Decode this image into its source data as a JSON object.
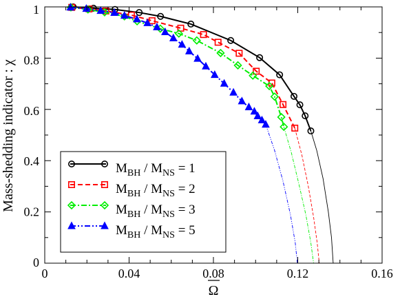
{
  "chart_data": {
    "type": "line",
    "title": "",
    "xlabel": "Ω",
    "ylabel": "Mass-shedding indicator : χ",
    "xlim": [
      0,
      0.16
    ],
    "ylim": [
      0,
      1
    ],
    "x_ticks": [
      "0",
      "0.04",
      "0.08",
      "0.12",
      "0.16"
    ],
    "y_ticks": [
      "0",
      "0.2",
      "0.4",
      "0.6",
      "0.8",
      "1"
    ],
    "grid": false,
    "legend_position": "lower-left",
    "series": [
      {
        "name": "M_BH / M_NS = 1",
        "label_parts": {
          "m": "M",
          "bh": "BH",
          "slash": " / ",
          "ns": "NS",
          "eq": " = ",
          "val": "1"
        },
        "color": "#000000",
        "line_style": "solid",
        "marker": "circle",
        "x": [
          0.0135,
          0.0231,
          0.0333,
          0.0448,
          0.0549,
          0.0693,
          0.0882,
          0.1019,
          0.1114,
          0.1182,
          0.121,
          0.1235,
          0.1262
        ],
        "y": [
          1.0,
          0.995,
          0.99,
          0.978,
          0.963,
          0.933,
          0.869,
          0.802,
          0.735,
          0.651,
          0.618,
          0.575,
          0.516
        ],
        "extrapolated": {
          "x": [
            0.1262,
            0.129,
            0.132,
            0.1345,
            0.136,
            0.1368
          ],
          "y": [
            0.516,
            0.44,
            0.33,
            0.2,
            0.1,
            0.0
          ]
        }
      },
      {
        "name": "M_BH / M_NS = 2",
        "label_parts": {
          "m": "M",
          "bh": "BH",
          "slash": " / ",
          "ns": "NS",
          "eq": " = ",
          "val": "2"
        },
        "color": "#ff0000",
        "line_style": "dashed",
        "marker": "square",
        "x": [
          0.0128,
          0.021,
          0.029,
          0.0411,
          0.0509,
          0.0645,
          0.0753,
          0.0822,
          0.0922,
          0.1003,
          0.1077,
          0.113,
          0.1186
        ],
        "y": [
          0.998,
          0.992,
          0.984,
          0.968,
          0.946,
          0.917,
          0.892,
          0.862,
          0.819,
          0.749,
          0.703,
          0.619,
          0.527
        ],
        "extrapolated": {
          "x": [
            0.1186,
            0.122,
            0.125,
            0.1275,
            0.1292,
            0.1302
          ],
          "y": [
            0.527,
            0.42,
            0.3,
            0.18,
            0.08,
            0.0
          ]
        }
      },
      {
        "name": "M_BH / M_NS = 3",
        "label_parts": {
          "m": "M",
          "bh": "BH",
          "slash": " / ",
          "ns": "NS",
          "eq": " = ",
          "val": "3"
        },
        "color": "#00ee00",
        "line_style": "dash-dot",
        "marker": "diamond",
        "x": [
          0.0124,
          0.0205,
          0.0284,
          0.0378,
          0.0438,
          0.0548,
          0.0636,
          0.0721,
          0.0834,
          0.0916,
          0.0987,
          0.1065,
          0.109,
          0.1122,
          0.1134
        ],
        "y": [
          0.998,
          0.99,
          0.979,
          0.963,
          0.944,
          0.915,
          0.896,
          0.869,
          0.82,
          0.772,
          0.732,
          0.691,
          0.65,
          0.57,
          0.532
        ],
        "extrapolated": {
          "x": [
            0.1134,
            0.117,
            0.1205,
            0.1238,
            0.1262,
            0.1275
          ],
          "y": [
            0.532,
            0.43,
            0.31,
            0.19,
            0.08,
            0.0
          ]
        }
      },
      {
        "name": "M_BH / M_NS = 5",
        "label_parts": {
          "m": "M",
          "bh": "BH",
          "slash": " / ",
          "ns": "NS",
          "eq": " = ",
          "val": "5"
        },
        "color": "#0000ff",
        "line_style": "dash-dot-dot",
        "marker": "triangle",
        "x": [
          0.0122,
          0.0197,
          0.0265,
          0.033,
          0.0378,
          0.0437,
          0.0487,
          0.0532,
          0.0571,
          0.061,
          0.0651,
          0.0685,
          0.0725,
          0.0764,
          0.0806,
          0.0851,
          0.0895,
          0.0935,
          0.0968,
          0.0994,
          0.101,
          0.103,
          0.1048
        ],
        "y": [
          0.998,
          0.993,
          0.985,
          0.977,
          0.966,
          0.952,
          0.937,
          0.921,
          0.902,
          0.878,
          0.853,
          0.827,
          0.798,
          0.768,
          0.735,
          0.701,
          0.666,
          0.632,
          0.609,
          0.592,
          0.574,
          0.558,
          0.541
        ],
        "extrapolated": {
          "x": [
            0.1048,
            0.109,
            0.113,
            0.1165,
            0.1188,
            0.1198
          ],
          "y": [
            0.541,
            0.44,
            0.32,
            0.19,
            0.08,
            0.0
          ]
        }
      }
    ]
  }
}
